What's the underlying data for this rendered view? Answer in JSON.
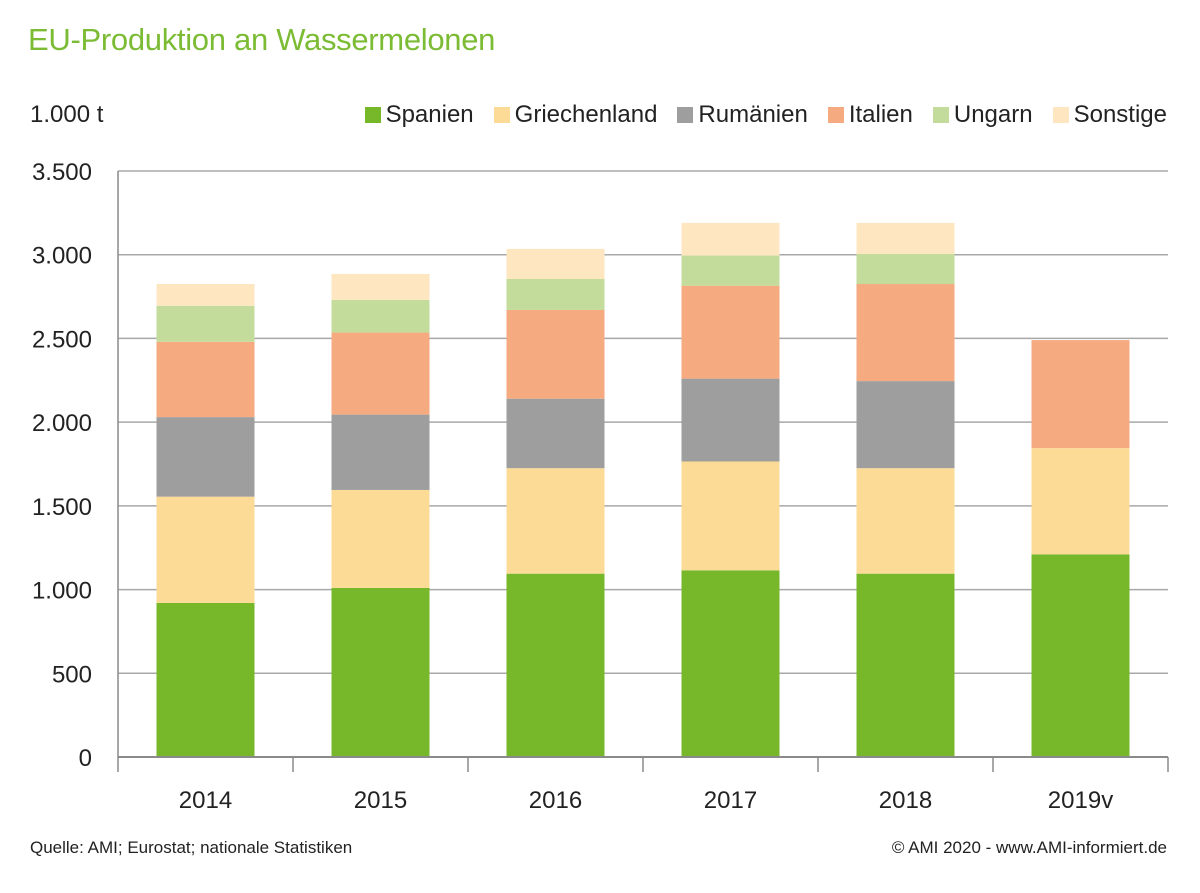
{
  "title": "EU-Produktion an Wassermelonen",
  "footer": {
    "source": "Quelle: AMI; Eurostat; nationale Statistiken",
    "copyright": "© AMI 2020 - www.AMI-informiert.de"
  },
  "chart_data": {
    "type": "bar",
    "stacked": true,
    "title": "EU-Produktion an Wassermelonen",
    "ylabel": "1.000 t",
    "xlabel": "",
    "ylim": [
      0,
      3500
    ],
    "yticks": [
      0,
      500,
      1000,
      1500,
      2000,
      2500,
      3000,
      3500
    ],
    "ytick_labels": [
      "0",
      "500",
      "1.000",
      "1.500",
      "2.000",
      "2.500",
      "3.000",
      "3.500"
    ],
    "grid": true,
    "legend_position": "top-right",
    "categories": [
      "2014",
      "2015",
      "2016",
      "2017",
      "2018",
      "2019v"
    ],
    "series": [
      {
        "name": "Spanien",
        "color": "#76b82a",
        "values": [
          920,
          1010,
          1095,
          1115,
          1095,
          1210
        ]
      },
      {
        "name": "Griechenland",
        "color": "#fcdb96",
        "values": [
          635,
          585,
          630,
          650,
          630,
          635
        ]
      },
      {
        "name": "Rumänien",
        "color": "#9e9e9e",
        "values": [
          475,
          450,
          415,
          495,
          520,
          0
        ]
      },
      {
        "name": "Italien",
        "color": "#f5aa80",
        "values": [
          450,
          490,
          530,
          555,
          580,
          645
        ]
      },
      {
        "name": "Ungarn",
        "color": "#c3dc9b",
        "values": [
          215,
          195,
          185,
          180,
          180,
          0
        ]
      },
      {
        "name": "Sonstige",
        "color": "#fde6c0",
        "values": [
          130,
          155,
          180,
          195,
          185,
          0
        ]
      }
    ]
  }
}
